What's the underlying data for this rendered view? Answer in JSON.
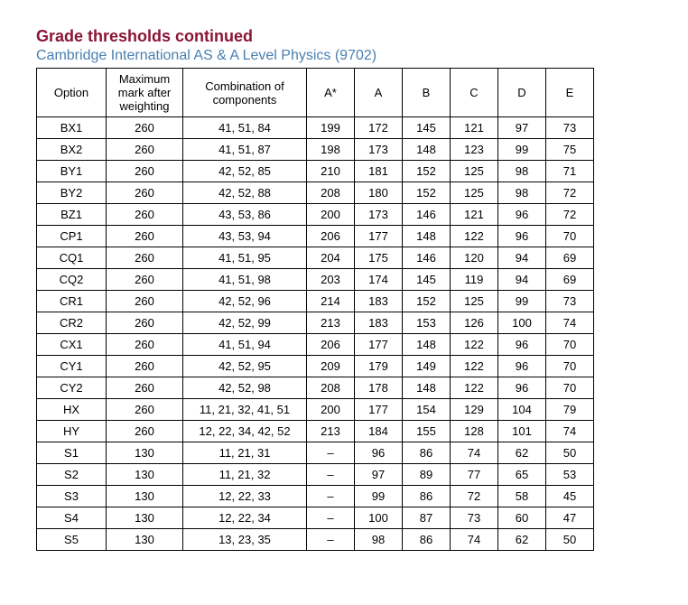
{
  "title_color": "#8a1538",
  "subtitle_color": "#4a7fb0",
  "title": "Grade thresholds continued",
  "subtitle": "Cambridge International AS & A Level Physics (9702)",
  "headers": {
    "option": "Option",
    "max": "Maximum mark after weighting",
    "combo": "Combination of components",
    "a_star": "A*",
    "a": "A",
    "b": "B",
    "c": "C",
    "d": "D",
    "e": "E"
  },
  "rows": [
    {
      "option": "BX1",
      "max": "260",
      "combo": "41, 51, 84",
      "a_star": "199",
      "a": "172",
      "b": "145",
      "c": "121",
      "d": "97",
      "e": "73"
    },
    {
      "option": "BX2",
      "max": "260",
      "combo": "41, 51, 87",
      "a_star": "198",
      "a": "173",
      "b": "148",
      "c": "123",
      "d": "99",
      "e": "75"
    },
    {
      "option": "BY1",
      "max": "260",
      "combo": "42, 52, 85",
      "a_star": "210",
      "a": "181",
      "b": "152",
      "c": "125",
      "d": "98",
      "e": "71"
    },
    {
      "option": "BY2",
      "max": "260",
      "combo": "42, 52, 88",
      "a_star": "208",
      "a": "180",
      "b": "152",
      "c": "125",
      "d": "98",
      "e": "72"
    },
    {
      "option": "BZ1",
      "max": "260",
      "combo": "43, 53, 86",
      "a_star": "200",
      "a": "173",
      "b": "146",
      "c": "121",
      "d": "96",
      "e": "72"
    },
    {
      "option": "CP1",
      "max": "260",
      "combo": "43, 53, 94",
      "a_star": "206",
      "a": "177",
      "b": "148",
      "c": "122",
      "d": "96",
      "e": "70"
    },
    {
      "option": "CQ1",
      "max": "260",
      "combo": "41, 51, 95",
      "a_star": "204",
      "a": "175",
      "b": "146",
      "c": "120",
      "d": "94",
      "e": "69"
    },
    {
      "option": "CQ2",
      "max": "260",
      "combo": "41, 51, 98",
      "a_star": "203",
      "a": "174",
      "b": "145",
      "c": "119",
      "d": "94",
      "e": "69"
    },
    {
      "option": "CR1",
      "max": "260",
      "combo": "42, 52, 96",
      "a_star": "214",
      "a": "183",
      "b": "152",
      "c": "125",
      "d": "99",
      "e": "73"
    },
    {
      "option": "CR2",
      "max": "260",
      "combo": "42, 52, 99",
      "a_star": "213",
      "a": "183",
      "b": "153",
      "c": "126",
      "d": "100",
      "e": "74"
    },
    {
      "option": "CX1",
      "max": "260",
      "combo": "41, 51, 94",
      "a_star": "206",
      "a": "177",
      "b": "148",
      "c": "122",
      "d": "96",
      "e": "70"
    },
    {
      "option": "CY1",
      "max": "260",
      "combo": "42, 52, 95",
      "a_star": "209",
      "a": "179",
      "b": "149",
      "c": "122",
      "d": "96",
      "e": "70"
    },
    {
      "option": "CY2",
      "max": "260",
      "combo": "42, 52, 98",
      "a_star": "208",
      "a": "178",
      "b": "148",
      "c": "122",
      "d": "96",
      "e": "70"
    },
    {
      "option": "HX",
      "max": "260",
      "combo": "11, 21, 32, 41, 51",
      "a_star": "200",
      "a": "177",
      "b": "154",
      "c": "129",
      "d": "104",
      "e": "79"
    },
    {
      "option": "HY",
      "max": "260",
      "combo": "12, 22, 34, 42, 52",
      "a_star": "213",
      "a": "184",
      "b": "155",
      "c": "128",
      "d": "101",
      "e": "74"
    },
    {
      "option": "S1",
      "max": "130",
      "combo": "11, 21, 31",
      "a_star": "–",
      "a": "96",
      "b": "86",
      "c": "74",
      "d": "62",
      "e": "50"
    },
    {
      "option": "S2",
      "max": "130",
      "combo": "11, 21, 32",
      "a_star": "–",
      "a": "97",
      "b": "89",
      "c": "77",
      "d": "65",
      "e": "53"
    },
    {
      "option": "S3",
      "max": "130",
      "combo": "12, 22, 33",
      "a_star": "–",
      "a": "99",
      "b": "86",
      "c": "72",
      "d": "58",
      "e": "45"
    },
    {
      "option": "S4",
      "max": "130",
      "combo": "12, 22, 34",
      "a_star": "–",
      "a": "100",
      "b": "87",
      "c": "73",
      "d": "60",
      "e": "47"
    },
    {
      "option": "S5",
      "max": "130",
      "combo": "13, 23, 35",
      "a_star": "–",
      "a": "98",
      "b": "86",
      "c": "74",
      "d": "62",
      "e": "50"
    }
  ]
}
